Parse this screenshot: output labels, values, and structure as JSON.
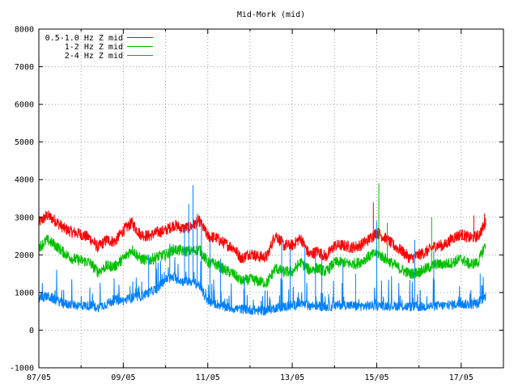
{
  "chart_data": {
    "type": "line",
    "title": "Mid-Mork (mid)",
    "xlabel": "",
    "ylabel": "",
    "x_start": "07/05",
    "x_end": "18/05",
    "x_tick_labels": [
      "07/05",
      "09/05",
      "11/05",
      "13/05",
      "15/05",
      "17/05"
    ],
    "x_tick_days": [
      7,
      9,
      11,
      13,
      15,
      17
    ],
    "x_grid_days": [
      7,
      8,
      9,
      10,
      11,
      12,
      13,
      14,
      15,
      16,
      17,
      18
    ],
    "x_data_range_days": [
      7.0,
      17.58
    ],
    "ylim": [
      -1000,
      8000
    ],
    "y_ticks": [
      -1000,
      0,
      1000,
      2000,
      3000,
      4000,
      5000,
      6000,
      7000,
      8000
    ],
    "grid": true,
    "legend_position": "top-left",
    "series": [
      {
        "name": "0.5-1.0 Hz Z mid",
        "color": "#ff0000",
        "x": [
          7.0,
          7.2,
          7.4,
          7.6,
          7.8,
          8.0,
          8.2,
          8.4,
          8.6,
          8.8,
          9.0,
          9.2,
          9.4,
          9.6,
          9.8,
          10.0,
          10.2,
          10.4,
          10.6,
          10.8,
          11.0,
          11.2,
          11.4,
          11.6,
          11.8,
          12.0,
          12.2,
          12.4,
          12.6,
          12.8,
          13.0,
          13.2,
          13.4,
          13.6,
          13.8,
          14.0,
          14.2,
          14.4,
          14.6,
          14.8,
          15.0,
          15.2,
          15.4,
          15.6,
          15.8,
          16.0,
          16.2,
          16.4,
          16.6,
          16.8,
          17.0,
          17.2,
          17.4,
          17.58
        ],
        "y": [
          2850,
          3050,
          2900,
          2700,
          2600,
          2550,
          2450,
          2200,
          2400,
          2350,
          2650,
          2850,
          2550,
          2500,
          2600,
          2650,
          2800,
          2700,
          2750,
          2900,
          2500,
          2450,
          2300,
          2200,
          1900,
          2050,
          1950,
          1950,
          2550,
          2250,
          2250,
          2450,
          2000,
          2100,
          1950,
          2250,
          2250,
          2200,
          2250,
          2400,
          2600,
          2450,
          2250,
          2100,
          1900,
          2000,
          2100,
          2250,
          2250,
          2450,
          2550,
          2450,
          2500,
          2850
        ]
      },
      {
        "name": "1-2 Hz Z mid",
        "color": "#00c000",
        "x": [
          7.0,
          7.2,
          7.4,
          7.6,
          7.8,
          8.0,
          8.2,
          8.4,
          8.6,
          8.8,
          9.0,
          9.2,
          9.4,
          9.6,
          9.8,
          10.0,
          10.2,
          10.4,
          10.6,
          10.8,
          11.0,
          11.2,
          11.4,
          11.6,
          11.8,
          12.0,
          12.2,
          12.4,
          12.6,
          12.8,
          13.0,
          13.2,
          13.4,
          13.6,
          13.8,
          14.0,
          14.2,
          14.4,
          14.6,
          14.8,
          15.0,
          15.2,
          15.4,
          15.6,
          15.8,
          16.0,
          16.2,
          16.4,
          16.6,
          16.8,
          17.0,
          17.2,
          17.4,
          17.58
        ],
        "y": [
          2200,
          2400,
          2250,
          2050,
          1900,
          1850,
          1800,
          1550,
          1700,
          1700,
          1900,
          2150,
          1900,
          1850,
          1950,
          2000,
          2150,
          2100,
          2100,
          2150,
          1800,
          1750,
          1600,
          1500,
          1300,
          1350,
          1300,
          1250,
          1650,
          1550,
          1550,
          1800,
          1600,
          1650,
          1550,
          1800,
          1800,
          1750,
          1800,
          1950,
          2050,
          1900,
          1750,
          1600,
          1500,
          1550,
          1650,
          1750,
          1750,
          1800,
          1900,
          1750,
          1800,
          2300
        ]
      },
      {
        "name": "2-4 Hz Z mid",
        "color": "#0080ff",
        "x": [
          7.0,
          7.2,
          7.4,
          7.6,
          7.8,
          8.0,
          8.2,
          8.4,
          8.6,
          8.8,
          9.0,
          9.2,
          9.4,
          9.6,
          9.8,
          10.0,
          10.2,
          10.4,
          10.6,
          10.8,
          11.0,
          11.2,
          11.4,
          11.6,
          11.8,
          12.0,
          12.2,
          12.4,
          12.6,
          12.8,
          13.0,
          13.2,
          13.4,
          13.6,
          13.8,
          14.0,
          14.2,
          14.4,
          14.6,
          14.8,
          15.0,
          15.2,
          15.4,
          15.6,
          15.8,
          16.0,
          16.2,
          16.4,
          16.6,
          16.8,
          17.0,
          17.2,
          17.4,
          17.58
        ],
        "y": [
          850,
          900,
          800,
          700,
          680,
          650,
          650,
          600,
          700,
          800,
          780,
          850,
          900,
          1000,
          1100,
          1350,
          1400,
          1300,
          1300,
          1200,
          750,
          700,
          620,
          580,
          560,
          540,
          520,
          520,
          600,
          620,
          650,
          700,
          650,
          650,
          620,
          650,
          680,
          650,
          630,
          650,
          650,
          650,
          650,
          630,
          620,
          620,
          630,
          650,
          650,
          680,
          700,
          680,
          700,
          900
        ]
      }
    ],
    "spikes": [
      {
        "series": 2,
        "x": 9.6,
        "y": 2000
      },
      {
        "series": 2,
        "x": 10.1,
        "y": 2300
      },
      {
        "series": 2,
        "x": 10.45,
        "y": 2700
      },
      {
        "series": 2,
        "x": 10.55,
        "y": 3350
      },
      {
        "series": 2,
        "x": 10.65,
        "y": 3850
      },
      {
        "series": 2,
        "x": 10.75,
        "y": 3100
      },
      {
        "series": 2,
        "x": 10.85,
        "y": 2900
      },
      {
        "series": 2,
        "x": 11.05,
        "y": 2400
      },
      {
        "series": 2,
        "x": 11.3,
        "y": 1900
      },
      {
        "series": 2,
        "x": 12.75,
        "y": 2500
      },
      {
        "series": 2,
        "x": 12.95,
        "y": 2150
      },
      {
        "series": 2,
        "x": 13.3,
        "y": 2200
      },
      {
        "series": 2,
        "x": 13.55,
        "y": 2150
      },
      {
        "series": 2,
        "x": 13.7,
        "y": 2050
      },
      {
        "series": 2,
        "x": 14.2,
        "y": 1800
      },
      {
        "series": 2,
        "x": 14.5,
        "y": 1500
      },
      {
        "series": 2,
        "x": 15.0,
        "y": 2900
      },
      {
        "series": 2,
        "x": 15.9,
        "y": 2400
      },
      {
        "series": 2,
        "x": 16.35,
        "y": 2100
      },
      {
        "series": 2,
        "x": 17.45,
        "y": 1500
      },
      {
        "series": 0,
        "x": 14.92,
        "y": 3400
      },
      {
        "series": 1,
        "x": 15.05,
        "y": 3900
      },
      {
        "series": 1,
        "x": 15.25,
        "y": 2850
      },
      {
        "series": 1,
        "x": 16.3,
        "y": 3000
      },
      {
        "series": 0,
        "x": 17.3,
        "y": 3050
      },
      {
        "series": 0,
        "x": 17.55,
        "y": 3100
      }
    ]
  }
}
